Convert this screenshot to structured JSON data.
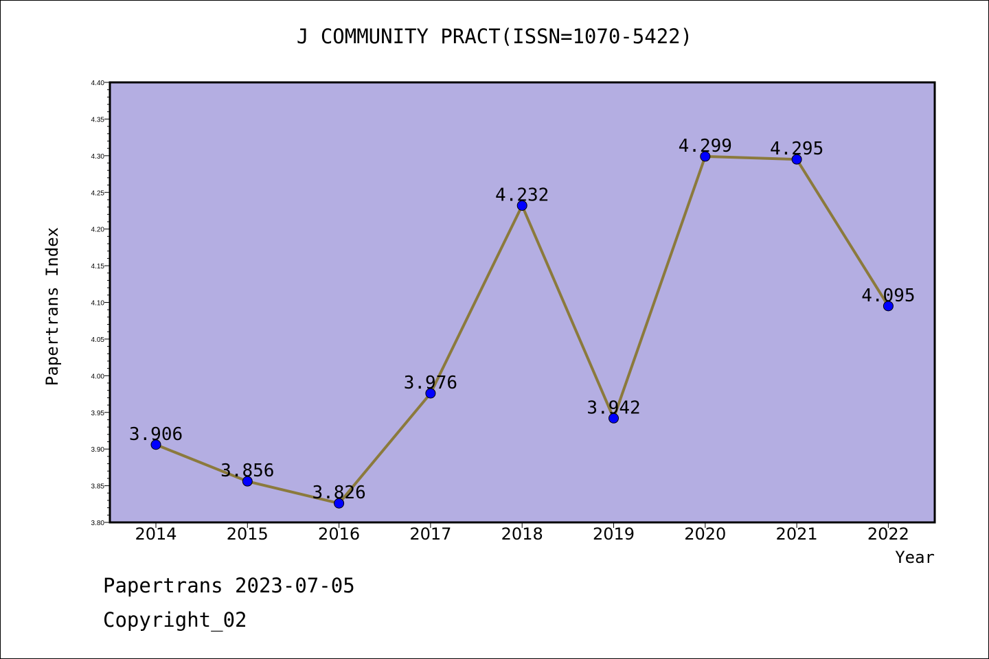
{
  "chart_data": {
    "type": "line",
    "title": "J COMMUNITY PRACT(ISSN=1070-5422)",
    "xlabel": "Year",
    "ylabel": "Papertrans Index",
    "categories": [
      "2014",
      "2015",
      "2016",
      "2017",
      "2018",
      "2019",
      "2020",
      "2021",
      "2022"
    ],
    "series": [
      {
        "values": [
          3.906,
          3.856,
          3.826,
          3.976,
          4.232,
          3.942,
          4.299,
          4.295,
          4.095
        ]
      }
    ],
    "data_labels": [
      "3.906",
      "3.856",
      "3.826",
      "3.976",
      "4.232",
      "3.942",
      "4.299",
      "4.295",
      "4.095"
    ],
    "ylim": [
      3.8,
      4.4
    ],
    "yticks": [
      "3.80",
      "3.85",
      "3.90",
      "3.95",
      "4.00",
      "4.05",
      "4.10",
      "4.15",
      "4.20",
      "4.25",
      "4.30",
      "4.35",
      "4.40"
    ],
    "grid": false,
    "colors": {
      "plot_background": "#b4aee2",
      "line": "#8b7a3c",
      "marker": "#0000ff"
    }
  },
  "footer": {
    "line1": "Papertrans 2023-07-05",
    "line2": "Copyright_02"
  }
}
